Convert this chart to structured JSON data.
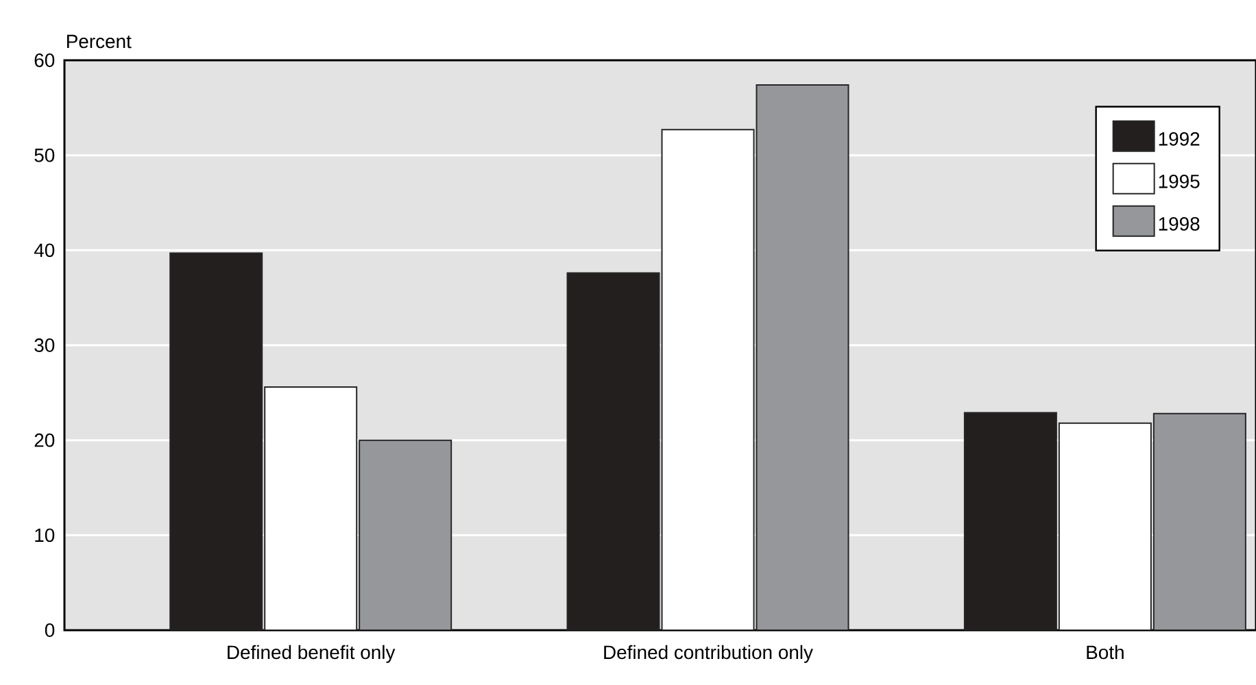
{
  "chart_data": {
    "type": "bar",
    "ylabel": "Percent",
    "categories": [
      "Defined benefit only",
      "Defined contribution only",
      "Both"
    ],
    "series": [
      {
        "name": "1992",
        "color": "#231f1f",
        "values": [
          39.7,
          37.6,
          22.9
        ]
      },
      {
        "name": "1995",
        "color": "#ffffff",
        "values": [
          25.6,
          52.7,
          21.8
        ]
      },
      {
        "name": "1998",
        "color": "#96979b",
        "values": [
          20.0,
          57.4,
          22.8
        ]
      }
    ],
    "ylim": [
      0,
      60
    ],
    "yticks": [
      0,
      10,
      20,
      30,
      40,
      50,
      60
    ],
    "grid": "y",
    "legend": "top right"
  }
}
